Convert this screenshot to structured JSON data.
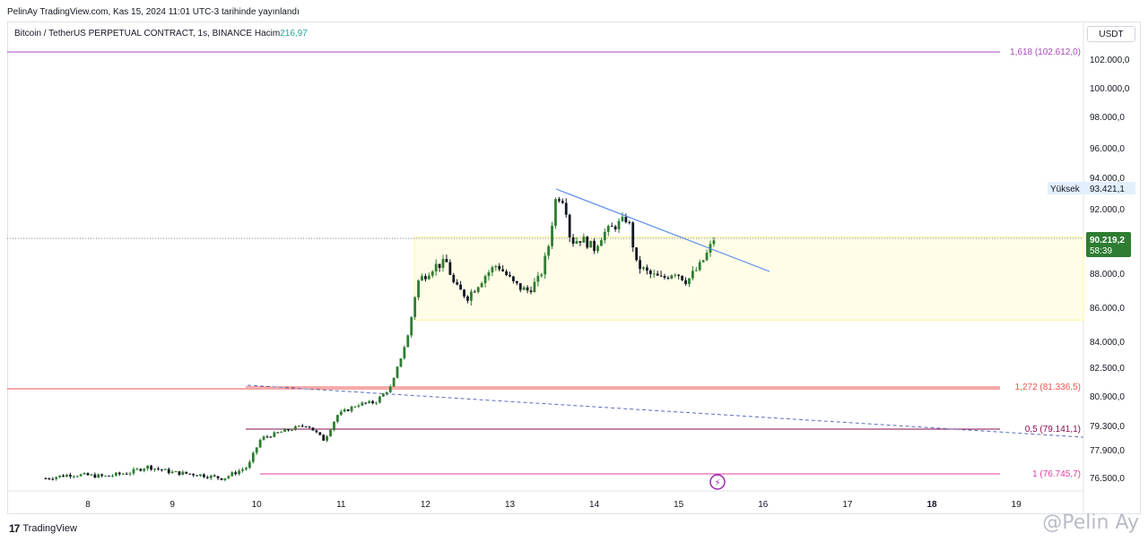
{
  "header": {
    "published": "PelinAy TradingView.com, Kas 15, 2024 11:01 UTC-3 tarihinde yayınlandı"
  },
  "symbol": {
    "title": "Bitcoin / TetherUS PERPETUAL CONTRACT, 1s, BINANCE",
    "vol_label": "Hacim",
    "vol_value": "216,97"
  },
  "currency": "USDT",
  "footer": {
    "logo_mark": "17",
    "logo_text": "TradingView",
    "watermark": "@Pelin Ay"
  },
  "chart_data": {
    "type": "candlestick",
    "x_ticks": [
      "8",
      "9",
      "10",
      "11",
      "12",
      "13",
      "14",
      "15",
      "16",
      "17",
      "18",
      "19"
    ],
    "y_ticks": [
      "102.000,0",
      "100.000,0",
      "98.000,0",
      "96.000,0",
      "94.000,0",
      "92.000,0",
      "88.000,0",
      "86.000,0",
      "84.000,0",
      "82.500,0",
      "80.900,0",
      "79.300,0",
      "77.900,0",
      "76.500,0"
    ],
    "last_price": {
      "value": "90.219,2",
      "countdown": "58:39"
    },
    "high_marker": {
      "label": "Yüksek",
      "value": "93.421,1"
    },
    "fib_levels": [
      {
        "label": "1,618 (102.612,0)",
        "color": "#ab47bc"
      },
      {
        "label": "1,272 (81.336,5)",
        "color": "#ef5350"
      },
      {
        "label": "0,5 (79.141,1)",
        "color": "#880e4f"
      },
      {
        "label": "1 (76.745,7)",
        "color": "#e040a0"
      }
    ],
    "range_box": {
      "top": 90300,
      "bottom": 85300,
      "color": "#fff59d"
    },
    "colors": {
      "up": "#2e7d32",
      "down": "#131722",
      "trendline": "#5b8def"
    },
    "close_path": [
      [
        7.5,
        76500
      ],
      [
        7.8,
        76700
      ],
      [
        8.2,
        76600
      ],
      [
        8.5,
        76800
      ],
      [
        8.7,
        77100
      ],
      [
        9.0,
        76800
      ],
      [
        9.3,
        76700
      ],
      [
        9.6,
        76500
      ],
      [
        9.9,
        77100
      ],
      [
        10.05,
        78600
      ],
      [
        10.3,
        79000
      ],
      [
        10.6,
        79400
      ],
      [
        10.8,
        78500
      ],
      [
        10.95,
        79900
      ],
      [
        11.2,
        80500
      ],
      [
        11.4,
        80600
      ],
      [
        11.6,
        81500
      ],
      [
        11.8,
        84500
      ],
      [
        11.9,
        87500
      ],
      [
        12.1,
        88500
      ],
      [
        12.25,
        88700
      ],
      [
        12.35,
        87200
      ],
      [
        12.5,
        86700
      ],
      [
        12.7,
        87900
      ],
      [
        12.85,
        88600
      ],
      [
        13.05,
        87400
      ],
      [
        13.2,
        87000
      ],
      [
        13.35,
        87700
      ],
      [
        13.45,
        89500
      ],
      [
        13.55,
        92900
      ],
      [
        13.65,
        92600
      ],
      [
        13.72,
        90000
      ],
      [
        13.85,
        90200
      ],
      [
        14.0,
        89600
      ],
      [
        14.1,
        90500
      ],
      [
        14.25,
        91000
      ],
      [
        14.4,
        91500
      ],
      [
        14.5,
        88600
      ],
      [
        14.65,
        88000
      ],
      [
        14.8,
        87700
      ],
      [
        14.95,
        88200
      ],
      [
        15.1,
        87600
      ],
      [
        15.25,
        88500
      ],
      [
        15.35,
        89400
      ],
      [
        15.42,
        90219
      ]
    ]
  }
}
